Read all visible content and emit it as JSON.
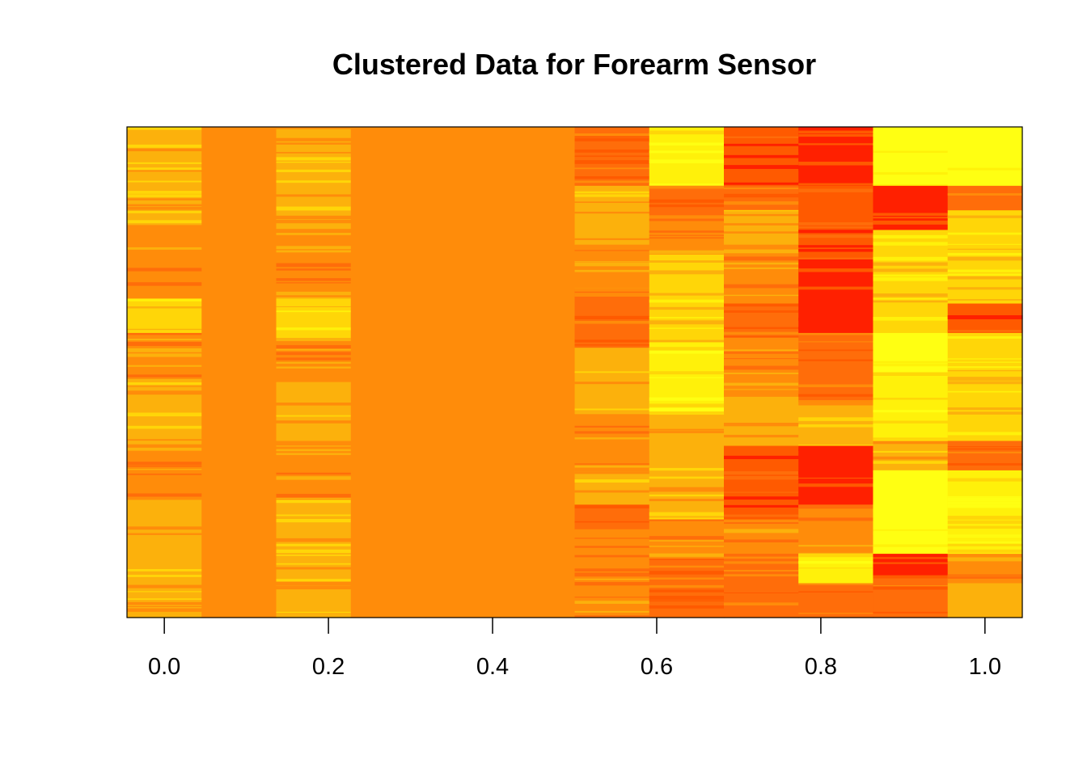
{
  "chart_data": {
    "type": "heatmap",
    "title": "Clustered Data for Forearm Sensor",
    "xlabel": "",
    "ylabel": "",
    "xlim": [
      -0.0455,
      1.0455
    ],
    "x_ticks": [
      0.0,
      0.2,
      0.4,
      0.6,
      0.8,
      1.0
    ],
    "x_tick_labels": [
      "0.0",
      "0.2",
      "0.4",
      "0.6",
      "0.8",
      "1.0"
    ],
    "ylim": [
      0,
      1
    ],
    "y_ticks": [],
    "grid": false,
    "legend": "none",
    "n_columns": 12,
    "column_centers": [
      0.0,
      0.0909,
      0.1818,
      0.2727,
      0.3636,
      0.4545,
      0.5455,
      0.6364,
      0.7273,
      0.8182,
      0.9091,
      1.0
    ],
    "color_scale": [
      "#ff2000",
      "#ff5a00",
      "#ff6d0a",
      "#ff8c0a",
      "#fcb10c",
      "#ffd608",
      "#fff10a",
      "#ffff12"
    ],
    "color_scale_note": "heat colors: red = low, yellow = high",
    "columns": [
      {
        "x": 0.0,
        "bands": [
          [
            0.0,
            0.2,
            4
          ],
          [
            0.2,
            0.35,
            3
          ],
          [
            0.35,
            0.42,
            5
          ],
          [
            0.42,
            0.52,
            3
          ],
          [
            0.52,
            0.66,
            4
          ],
          [
            0.66,
            0.76,
            3
          ],
          [
            0.76,
            1.0,
            4
          ]
        ]
      },
      {
        "x": 0.0909,
        "bands": [
          [
            0.0,
            1.0,
            3
          ]
        ]
      },
      {
        "x": 0.1818,
        "bands": [
          [
            0.0,
            0.22,
            4
          ],
          [
            0.22,
            0.35,
            3
          ],
          [
            0.35,
            0.43,
            5
          ],
          [
            0.43,
            0.52,
            3
          ],
          [
            0.52,
            0.64,
            4
          ],
          [
            0.64,
            0.76,
            3
          ],
          [
            0.76,
            1.0,
            4
          ]
        ]
      },
      {
        "x": 0.2727,
        "bands": [
          [
            0.0,
            1.0,
            3
          ]
        ]
      },
      {
        "x": 0.3636,
        "bands": [
          [
            0.0,
            1.0,
            3
          ]
        ]
      },
      {
        "x": 0.4545,
        "bands": [
          [
            0.0,
            1.0,
            3
          ]
        ]
      },
      {
        "x": 0.5455,
        "bands": [
          [
            0.0,
            0.12,
            2
          ],
          [
            0.12,
            0.24,
            4
          ],
          [
            0.24,
            0.33,
            3
          ],
          [
            0.33,
            0.45,
            2
          ],
          [
            0.45,
            0.58,
            4
          ],
          [
            0.58,
            0.69,
            3
          ],
          [
            0.69,
            0.77,
            4
          ],
          [
            0.77,
            0.82,
            2
          ],
          [
            0.82,
            0.9,
            3
          ],
          [
            0.9,
            1.0,
            3
          ]
        ]
      },
      {
        "x": 0.6364,
        "bands": [
          [
            0.0,
            0.12,
            6
          ],
          [
            0.12,
            0.18,
            2
          ],
          [
            0.18,
            0.26,
            3
          ],
          [
            0.26,
            0.44,
            5
          ],
          [
            0.44,
            0.58,
            6
          ],
          [
            0.58,
            0.66,
            4
          ],
          [
            0.66,
            0.8,
            4
          ],
          [
            0.8,
            0.88,
            3
          ],
          [
            0.88,
            1.0,
            2
          ]
        ]
      },
      {
        "x": 0.7273,
        "bands": [
          [
            0.0,
            0.12,
            1
          ],
          [
            0.12,
            0.17,
            2
          ],
          [
            0.17,
            0.24,
            4
          ],
          [
            0.24,
            0.36,
            3
          ],
          [
            0.36,
            0.43,
            2
          ],
          [
            0.43,
            0.55,
            3
          ],
          [
            0.55,
            0.65,
            4
          ],
          [
            0.65,
            0.8,
            1
          ],
          [
            0.8,
            0.88,
            3
          ],
          [
            0.88,
            1.0,
            2
          ]
        ]
      },
      {
        "x": 0.8182,
        "bands": [
          [
            0.0,
            0.12,
            0
          ],
          [
            0.12,
            0.27,
            1
          ],
          [
            0.27,
            0.42,
            0
          ],
          [
            0.42,
            0.56,
            2
          ],
          [
            0.56,
            0.65,
            4
          ],
          [
            0.65,
            0.77,
            0
          ],
          [
            0.77,
            0.87,
            3
          ],
          [
            0.87,
            0.93,
            6
          ],
          [
            0.93,
            1.0,
            2
          ]
        ]
      },
      {
        "x": 0.9091,
        "bands": [
          [
            0.0,
            0.12,
            7
          ],
          [
            0.12,
            0.21,
            0
          ],
          [
            0.21,
            0.42,
            5
          ],
          [
            0.42,
            0.5,
            7
          ],
          [
            0.5,
            0.64,
            6
          ],
          [
            0.64,
            0.7,
            4
          ],
          [
            0.7,
            0.87,
            7
          ],
          [
            0.87,
            0.92,
            0
          ],
          [
            0.92,
            1.0,
            2
          ]
        ]
      },
      {
        "x": 1.0,
        "bands": [
          [
            0.0,
            0.12,
            7
          ],
          [
            0.12,
            0.17,
            2
          ],
          [
            0.17,
            0.36,
            5
          ],
          [
            0.36,
            0.42,
            1
          ],
          [
            0.42,
            0.64,
            5
          ],
          [
            0.64,
            0.7,
            2
          ],
          [
            0.7,
            0.87,
            6
          ],
          [
            0.87,
            0.93,
            3
          ],
          [
            0.93,
            1.0,
            4
          ]
        ]
      }
    ]
  }
}
